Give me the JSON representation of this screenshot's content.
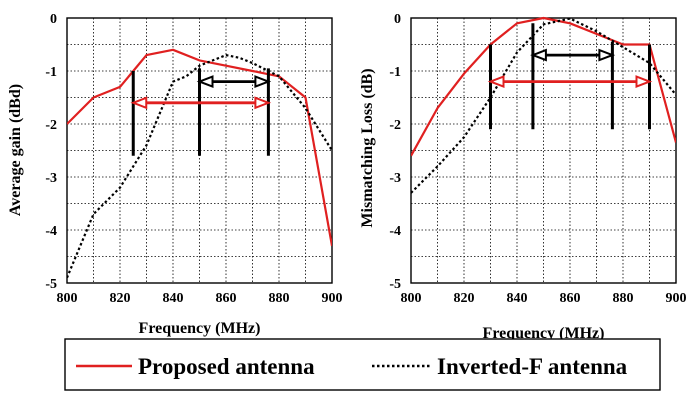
{
  "chart_data": [
    {
      "type": "line",
      "xlabel": "Frequency (MHz)",
      "ylabel": "Average gain (dBd)",
      "xlim": [
        800,
        900
      ],
      "ylim": [
        -5,
        0
      ],
      "xticks": [
        800,
        820,
        840,
        860,
        880,
        900
      ],
      "yticks": [
        0,
        -1,
        -2,
        -3,
        -4,
        -5
      ],
      "grid": true,
      "series": [
        {
          "name": "Proposed antenna",
          "color": "#e02020",
          "style": "solid",
          "x": [
            800,
            810,
            820,
            825,
            830,
            840,
            850,
            860,
            870,
            875,
            880,
            890,
            900
          ],
          "y": [
            -2.0,
            -1.5,
            -1.3,
            -1.0,
            -0.7,
            -0.6,
            -0.8,
            -0.9,
            -1.0,
            -1.05,
            -1.1,
            -1.5,
            -4.3
          ]
        },
        {
          "name": "Inverted-F antenna",
          "color": "#000000",
          "style": "dotted",
          "x": [
            800,
            810,
            820,
            830,
            840,
            845,
            850,
            855,
            860,
            865,
            870,
            880,
            890,
            900
          ],
          "y": [
            -4.9,
            -3.7,
            -3.2,
            -2.4,
            -1.2,
            -1.1,
            -0.9,
            -0.8,
            -0.7,
            -0.75,
            -0.85,
            -1.1,
            -1.7,
            -2.5
          ]
        }
      ],
      "markers": [
        {
          "x": 825,
          "y_top": -1.0,
          "y_bottom": -2.6
        },
        {
          "x": 850,
          "y_top": -0.95,
          "y_bottom": -2.6
        },
        {
          "x": 876,
          "y_top": -0.95,
          "y_bottom": -2.6
        }
      ],
      "bandwidth_arrows": [
        {
          "color": "#e02020",
          "x1": 825,
          "x2": 876,
          "y": -1.6
        },
        {
          "color": "#000000",
          "x1": 850,
          "x2": 876,
          "y": -1.2
        }
      ]
    },
    {
      "type": "line",
      "xlabel": "Frequency (MHz)",
      "ylabel": "Mismatching Loss (dB)",
      "xlim": [
        800,
        900
      ],
      "ylim": [
        -5,
        0
      ],
      "xticks": [
        800,
        820,
        840,
        860,
        880,
        900
      ],
      "yticks": [
        0,
        -1,
        -2,
        -3,
        -4,
        -5
      ],
      "grid": true,
      "series": [
        {
          "name": "Proposed antenna",
          "color": "#e02020",
          "style": "solid",
          "x": [
            800,
            810,
            820,
            830,
            840,
            850,
            860,
            870,
            880,
            890,
            900
          ],
          "y": [
            -2.6,
            -1.7,
            -1.05,
            -0.5,
            -0.1,
            0.0,
            -0.1,
            -0.3,
            -0.5,
            -0.5,
            -2.35
          ]
        },
        {
          "name": "Inverted-F antenna",
          "color": "#000000",
          "style": "dotted",
          "x": [
            800,
            810,
            820,
            830,
            840,
            850,
            860,
            870,
            880,
            890,
            900
          ],
          "y": [
            -3.3,
            -2.8,
            -2.25,
            -1.5,
            -0.65,
            -0.12,
            -0.01,
            -0.25,
            -0.55,
            -0.85,
            -1.45
          ]
        }
      ],
      "markers": [
        {
          "x": 830,
          "y_top": -0.5,
          "y_bottom": -2.1
        },
        {
          "x": 846,
          "y_top": -0.1,
          "y_bottom": -2.1
        },
        {
          "x": 876,
          "y_top": -0.45,
          "y_bottom": -2.1
        },
        {
          "x": 890,
          "y_top": -0.5,
          "y_bottom": -2.1
        }
      ],
      "bandwidth_arrows": [
        {
          "color": "#e02020",
          "x1": 830,
          "x2": 890,
          "y": -1.2
        },
        {
          "color": "#000000",
          "x1": 846,
          "x2": 876,
          "y": -0.7
        }
      ]
    }
  ],
  "legend": {
    "entries": [
      {
        "label": "Proposed antenna",
        "color": "#e02020",
        "style": "solid"
      },
      {
        "label": "Inverted-F antenna",
        "color": "#000000",
        "style": "dotted"
      }
    ]
  }
}
